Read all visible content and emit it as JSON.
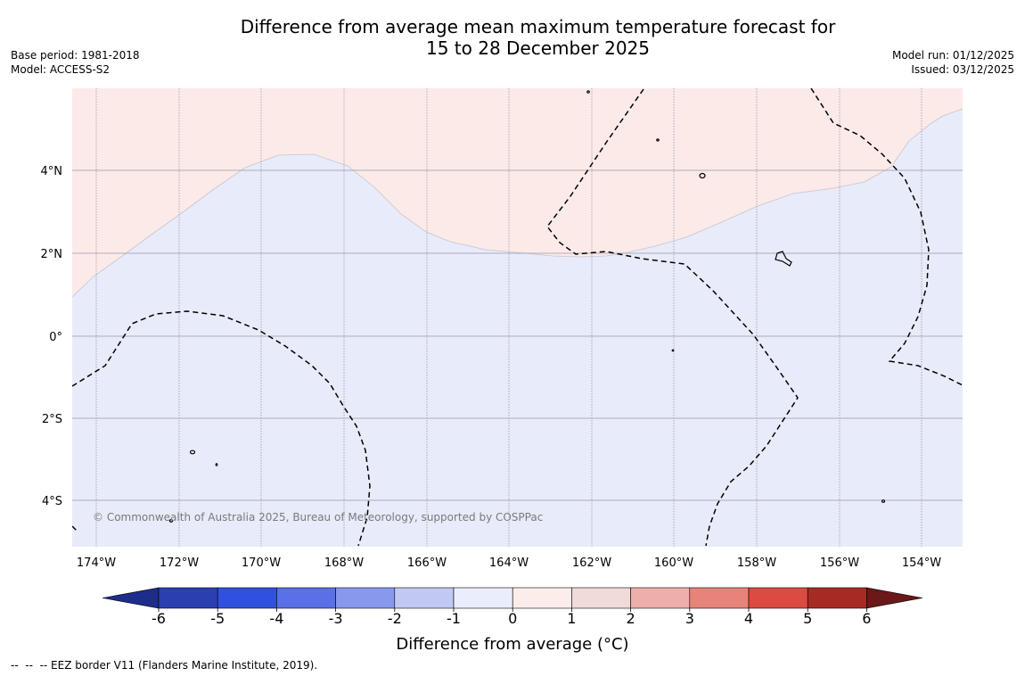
{
  "title": {
    "line1": "Difference from average mean maximum temperature forecast for",
    "line2": "15 to 28 December 2025"
  },
  "meta": {
    "base_period": "Base period: 1981-2018",
    "model": "Model: ACCESS-S2",
    "model_run": "Model run: 01/12/2025",
    "issued": "Issued: 03/12/2025"
  },
  "map": {
    "lat_labels": [
      "4°N",
      "2°N",
      "0°",
      "2°S",
      "4°S"
    ],
    "lon_labels": [
      "174°W",
      "172°W",
      "170°W",
      "168°W",
      "166°W",
      "164°W",
      "162°W",
      "160°W",
      "158°W",
      "156°W",
      "154°W"
    ],
    "copyright": "© Commonwealth of Australia 2025, Bureau of Meteorology, supported by COSPPac",
    "colors": {
      "warm_region": "#fbeae8",
      "cool_region": "#e8ebfa",
      "gridline": "#9a9aa8",
      "contour": "#000000"
    }
  },
  "colorbar": {
    "ticks": [
      "-6",
      "-5",
      "-4",
      "-3",
      "-2",
      "-1",
      "0",
      "1",
      "2",
      "3",
      "4",
      "5",
      "6"
    ],
    "colors": [
      "#1e2c8a",
      "#2a40b0",
      "#3050e0",
      "#5a70e6",
      "#8898ec",
      "#c2c8f4",
      "#eaedfb",
      "#fcedeb",
      "#f0dbd9",
      "#eeafab",
      "#e8837a",
      "#dc4b40",
      "#a82a24",
      "#6a1818"
    ],
    "label": "Difference from average (°C)"
  },
  "footer": {
    "eez_note": "--  --  -- EEZ border V11 (Flanders Marine Institute, 2019)."
  }
}
